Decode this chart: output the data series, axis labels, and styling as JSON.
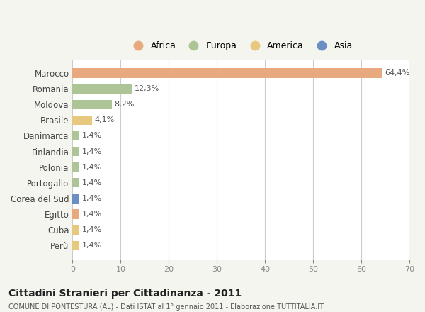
{
  "countries": [
    "Marocco",
    "Romania",
    "Moldova",
    "Brasile",
    "Danimarca",
    "Finlandia",
    "Polonia",
    "Portogallo",
    "Corea del Sud",
    "Egitto",
    "Cuba",
    "Perù"
  ],
  "values": [
    64.4,
    12.3,
    8.2,
    4.1,
    1.4,
    1.4,
    1.4,
    1.4,
    1.4,
    1.4,
    1.4,
    1.4
  ],
  "labels": [
    "64,4%",
    "12,3%",
    "8,2%",
    "4,1%",
    "1,4%",
    "1,4%",
    "1,4%",
    "1,4%",
    "1,4%",
    "1,4%",
    "1,4%",
    "1,4%"
  ],
  "categories": [
    "Africa",
    "Europa",
    "America",
    "Asia"
  ],
  "bar_colors": [
    "#e8a97e",
    "#adc496",
    "#adc496",
    "#e8c87e",
    "#adc496",
    "#adc496",
    "#adc496",
    "#adc496",
    "#6b8ec4",
    "#e8a97e",
    "#e8c87e",
    "#e8c87e"
  ],
  "legend_colors": [
    "#e8a97e",
    "#adc496",
    "#e8c87e",
    "#6b8ec4"
  ],
  "xlim": [
    0,
    70
  ],
  "xticks": [
    0,
    10,
    20,
    30,
    40,
    50,
    60,
    70
  ],
  "title": "Cittadini Stranieri per Cittadinanza - 2011",
  "subtitle": "COMUNE DI PONTESTURA (AL) - Dati ISTAT al 1° gennaio 2011 - Elaborazione TUTTITALIA.IT",
  "background_color": "#f5f5f0",
  "bar_bg_color": "#ffffff",
  "grid_color": "#cccccc"
}
